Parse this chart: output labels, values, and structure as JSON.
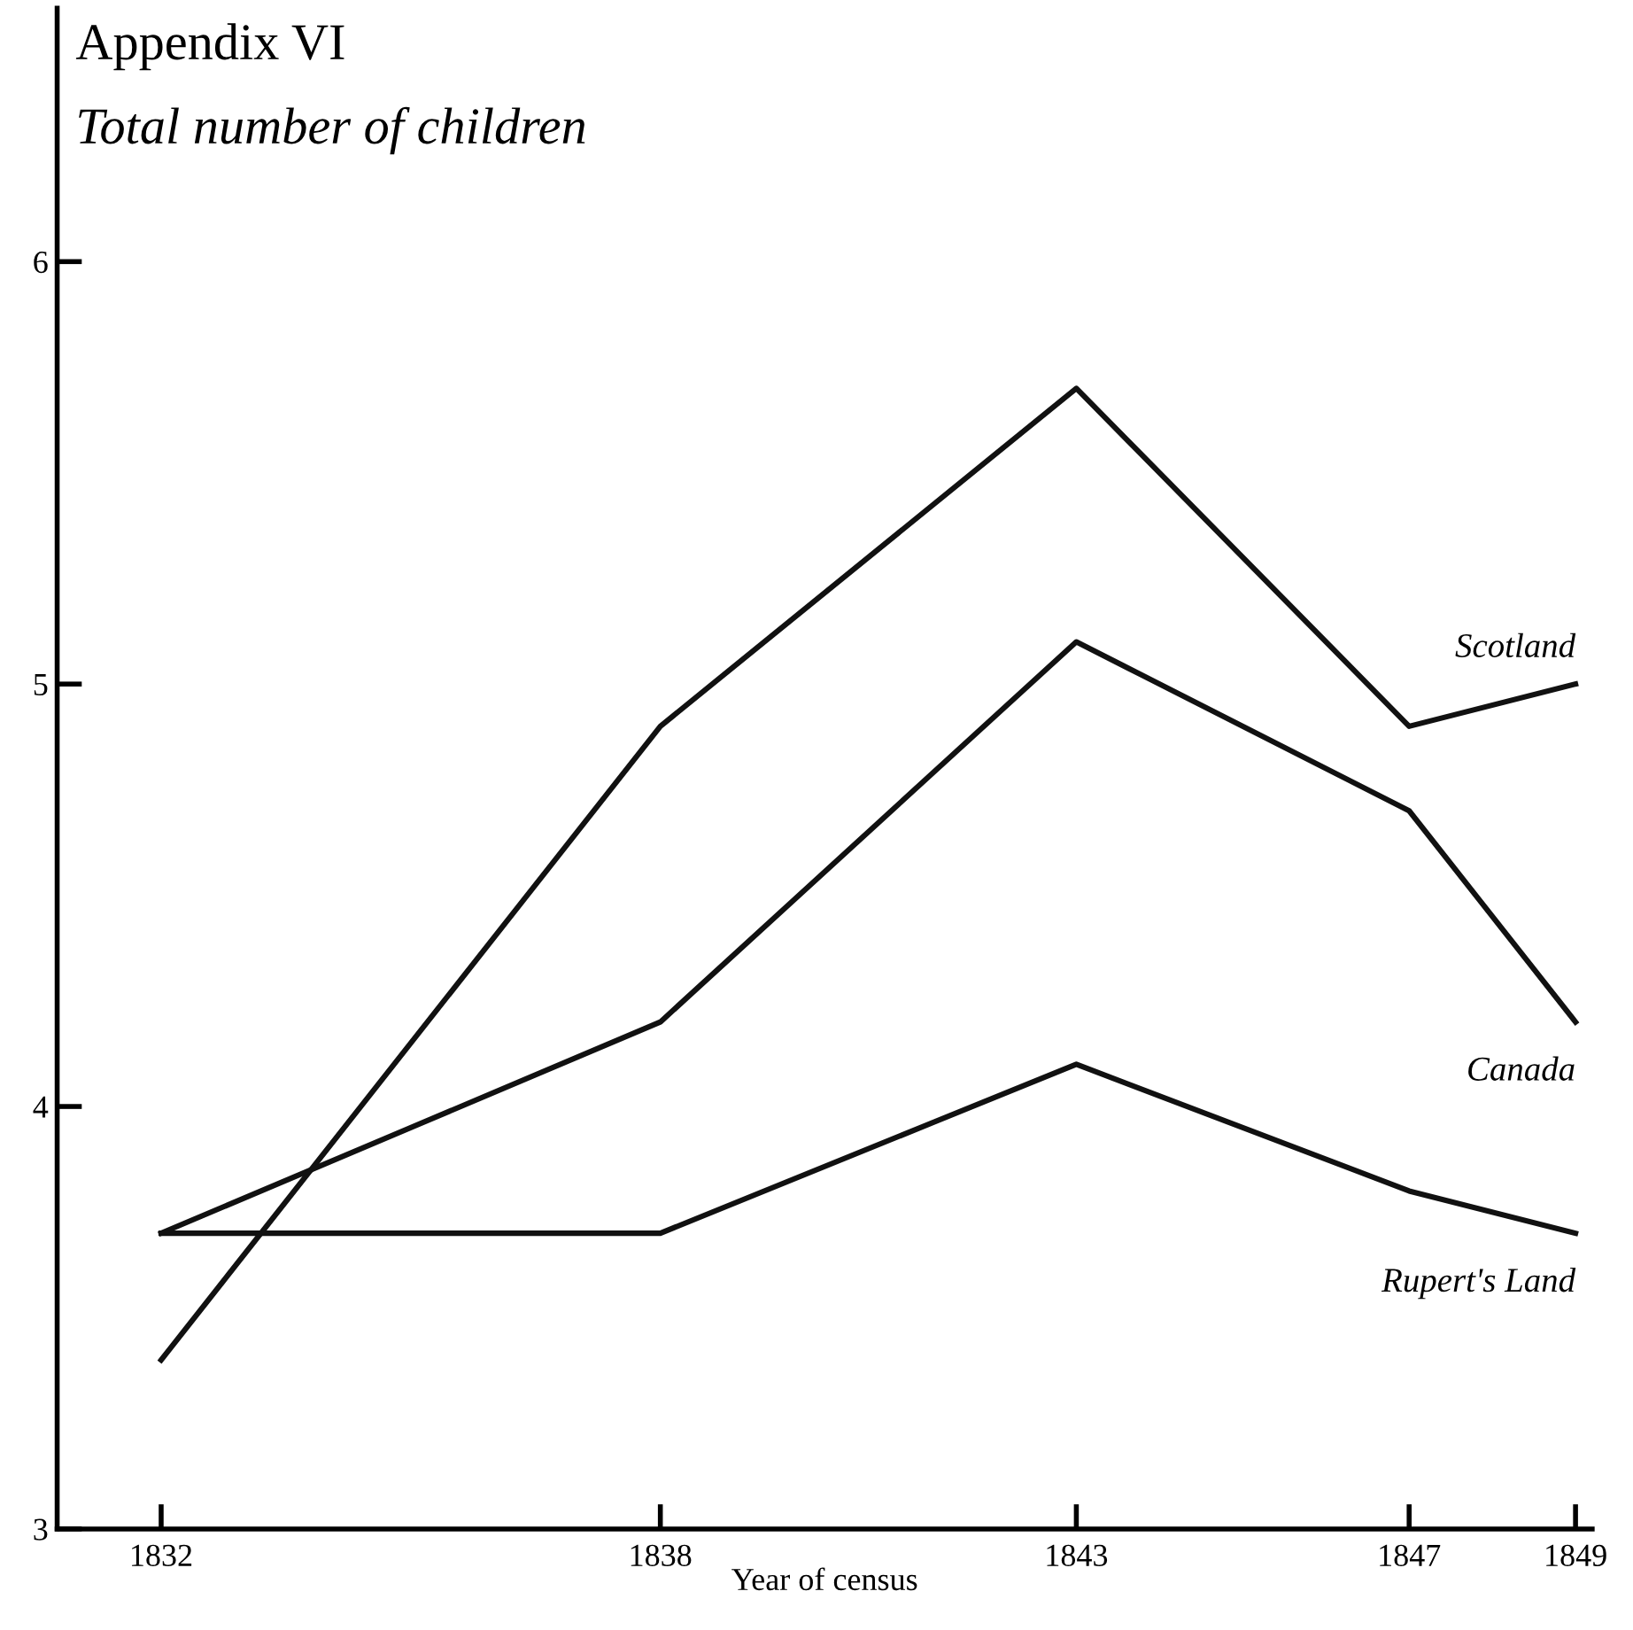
{
  "chart_data": {
    "type": "line",
    "title": "Appendix VI",
    "subtitle": "Total number of children",
    "xlabel": "Year of census",
    "x": [
      1832,
      1838,
      1843,
      1847,
      1849
    ],
    "series": [
      {
        "name": "Scotland",
        "color": "#111111",
        "values": [
          3.4,
          4.9,
          5.7,
          4.9,
          5.0
        ]
      },
      {
        "name": "Canada",
        "color": "#111111",
        "values": [
          3.7,
          4.2,
          5.1,
          4.7,
          4.2
        ]
      },
      {
        "name": "Rupert's Land",
        "color": "#111111",
        "values": [
          3.7,
          3.7,
          4.1,
          3.8,
          3.7
        ]
      }
    ],
    "xlim": [
      1830.75,
      1849.2
    ],
    "ylim": [
      3,
      6.6
    ],
    "xticks": [
      1832,
      1838,
      1843,
      1847,
      1849
    ],
    "yticks": [
      3,
      4,
      5,
      6
    ],
    "grid": false,
    "legend": false,
    "marker": "none",
    "line_style": "solid"
  }
}
